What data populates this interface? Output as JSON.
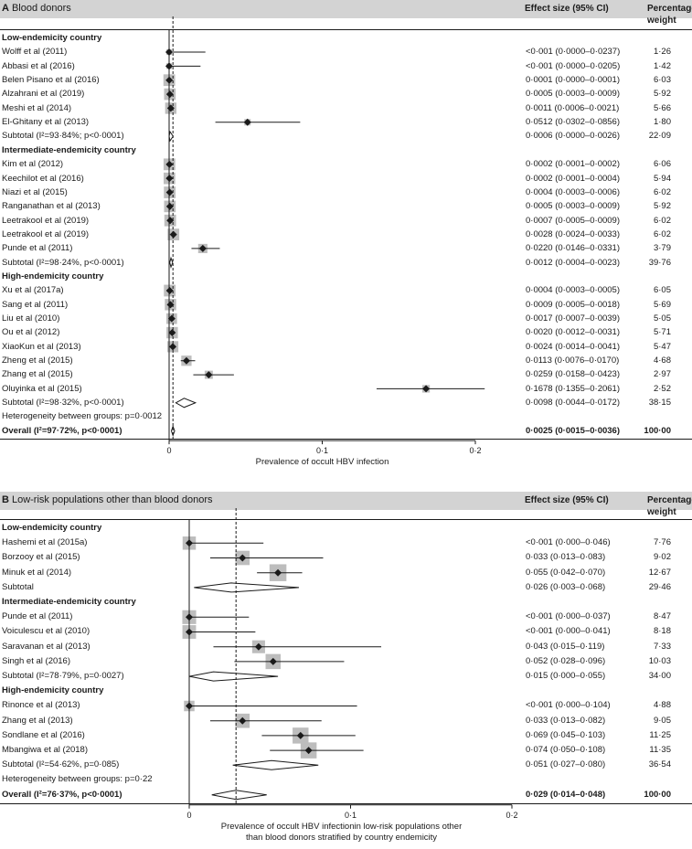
{
  "chart_data": [
    {
      "type": "forest",
      "panel_letter": "A",
      "title": "Blood donors",
      "effect_header": "Effect size (95% CI)",
      "weight_header_line1": "Percentage",
      "weight_header_line2": "weight",
      "xlabel": "Prevalence of occult HBV infection",
      "xlabel_line2": "",
      "xlim": [
        0,
        0.2
      ],
      "ticks": [
        0,
        0.1,
        0.2
      ],
      "tick_labels": [
        "0",
        "0·1",
        "0·2"
      ],
      "reference_line": 0.0025,
      "rows": [
        {
          "kind": "group",
          "label": "Low-endemicity country"
        },
        {
          "kind": "study",
          "label": "Wolff et al (2011)",
          "est": 0.0,
          "lo": 0.0,
          "hi": 0.0237,
          "ci_text": "<0·001 (0·0000–0·0237)",
          "weight_text": "1·26",
          "weight": 1.26
        },
        {
          "kind": "study",
          "label": "Abbasi et al (2016)",
          "est": 0.0,
          "lo": 0.0,
          "hi": 0.0205,
          "ci_text": "<0·001 (0·0000–0·0205)",
          "weight_text": "1·42",
          "weight": 1.42
        },
        {
          "kind": "study",
          "label": "Belen Pisano et al (2016)",
          "est": 0.0001,
          "lo": 0.0,
          "hi": 0.0001,
          "ci_text": "0·0001 (0·0000–0·0001)",
          "weight_text": "6·03",
          "weight": 6.03
        },
        {
          "kind": "study",
          "label": "Alzahrani et al (2019)",
          "est": 0.0005,
          "lo": 0.0003,
          "hi": 0.0009,
          "ci_text": "0·0005 (0·0003–0·0009)",
          "weight_text": "5·92",
          "weight": 5.92
        },
        {
          "kind": "study",
          "label": "Meshi et al (2014)",
          "est": 0.0011,
          "lo": 0.0006,
          "hi": 0.0021,
          "ci_text": "0·0011 (0·0006–0·0021)",
          "weight_text": "5·66",
          "weight": 5.66
        },
        {
          "kind": "study",
          "label": "El-Ghitany et al (2013)",
          "est": 0.0512,
          "lo": 0.0302,
          "hi": 0.0856,
          "ci_text": "0·0512 (0·0302–0·0856)",
          "weight_text": "1·80",
          "weight": 1.8
        },
        {
          "kind": "subtotal",
          "label": "Subtotal (I²=93·84%; p<0·0001)",
          "est": 0.0006,
          "lo": 0.0,
          "hi": 0.0026,
          "ci_text": "0·0006 (0·0000–0·0026)",
          "weight_text": "22·09"
        },
        {
          "kind": "group",
          "label": "Intermediate-endemicity country"
        },
        {
          "kind": "study",
          "label": "Kim et al (2012)",
          "est": 0.0002,
          "lo": 0.0001,
          "hi": 0.0002,
          "ci_text": "0·0002 (0·0001–0·0002)",
          "weight_text": "6·06",
          "weight": 6.06
        },
        {
          "kind": "study",
          "label": "Keechilot et al (2016)",
          "est": 0.0002,
          "lo": 0.0001,
          "hi": 0.0004,
          "ci_text": "0·0002 (0·0001–0·0004)",
          "weight_text": "5·94",
          "weight": 5.94
        },
        {
          "kind": "study",
          "label": "Niazi et al (2015)",
          "est": 0.0004,
          "lo": 0.0003,
          "hi": 0.0006,
          "ci_text": "0·0004 (0·0003–0·0006)",
          "weight_text": "6·02",
          "weight": 6.02
        },
        {
          "kind": "study",
          "label": "Ranganathan et al (2013)",
          "est": 0.0005,
          "lo": 0.0003,
          "hi": 0.0009,
          "ci_text": "0·0005 (0·0003–0·0009)",
          "weight_text": "5·92",
          "weight": 5.92
        },
        {
          "kind": "study",
          "label": "Leetrakool et al (2019)",
          "est": 0.0007,
          "lo": 0.0005,
          "hi": 0.0009,
          "ci_text": "0·0007 (0·0005–0·0009)",
          "weight_text": "6·02",
          "weight": 6.02
        },
        {
          "kind": "study",
          "label": "Leetrakool et al (2019)",
          "est": 0.0028,
          "lo": 0.0024,
          "hi": 0.0033,
          "ci_text": "0·0028 (0·0024–0·0033)",
          "weight_text": "6·02",
          "weight": 6.02
        },
        {
          "kind": "study",
          "label": "Punde et al (2011)",
          "est": 0.022,
          "lo": 0.0146,
          "hi": 0.0331,
          "ci_text": "0·0220 (0·0146–0·0331)",
          "weight_text": "3·79",
          "weight": 3.79
        },
        {
          "kind": "subtotal",
          "label": "Subtotal (I²=98·24%, p<0·0001)",
          "est": 0.0012,
          "lo": 0.0004,
          "hi": 0.0023,
          "ci_text": "0·0012 (0·0004–0·0023)",
          "weight_text": "39·76"
        },
        {
          "kind": "group",
          "label": "High-endemicity country"
        },
        {
          "kind": "study",
          "label": "Xu et al (2017a)",
          "est": 0.0004,
          "lo": 0.0003,
          "hi": 0.0005,
          "ci_text": "0·0004 (0·0003–0·0005)",
          "weight_text": "6·05",
          "weight": 6.05
        },
        {
          "kind": "study",
          "label": "Sang et al (2011)",
          "est": 0.0009,
          "lo": 0.0005,
          "hi": 0.0018,
          "ci_text": "0·0009 (0·0005–0·0018)",
          "weight_text": "5·69",
          "weight": 5.69
        },
        {
          "kind": "study",
          "label": "Liu et al (2010)",
          "est": 0.0017,
          "lo": 0.0007,
          "hi": 0.0039,
          "ci_text": "0·0017 (0·0007–0·0039)",
          "weight_text": "5·05",
          "weight": 5.05
        },
        {
          "kind": "study",
          "label": "Ou et al (2012)",
          "est": 0.002,
          "lo": 0.0012,
          "hi": 0.0031,
          "ci_text": "0·0020 (0·0012–0·0031)",
          "weight_text": "5·71",
          "weight": 5.71
        },
        {
          "kind": "study",
          "label": "XiaoKun et al (2013)",
          "est": 0.0024,
          "lo": 0.0014,
          "hi": 0.0041,
          "ci_text": "0·0024 (0·0014–0·0041)",
          "weight_text": "5·47",
          "weight": 5.47
        },
        {
          "kind": "study",
          "label": "Zheng et al (2015)",
          "est": 0.0113,
          "lo": 0.0076,
          "hi": 0.017,
          "ci_text": "0·0113 (0·0076–0·0170)",
          "weight_text": "4·68",
          "weight": 4.68
        },
        {
          "kind": "study",
          "label": "Zhang et al (2015)",
          "est": 0.0259,
          "lo": 0.0158,
          "hi": 0.0423,
          "ci_text": "0·0259 (0·0158–0·0423)",
          "weight_text": "2·97",
          "weight": 2.97
        },
        {
          "kind": "study",
          "label": "Oluyinka et al (2015)",
          "est": 0.1678,
          "lo": 0.1355,
          "hi": 0.2061,
          "ci_text": "0·1678 (0·1355–0·2061)",
          "weight_text": "2·52",
          "weight": 2.52
        },
        {
          "kind": "subtotal",
          "label": "Subtotal  (I²=98·32%, p<0·0001)",
          "est": 0.0098,
          "lo": 0.0044,
          "hi": 0.0172,
          "ci_text": "0·0098 (0·0044–0·0172)",
          "weight_text": "38·15"
        },
        {
          "kind": "note",
          "label": "Heterogeneity between groups: p=0·0012"
        },
        {
          "kind": "overall",
          "label": "Overall  (I²=97·72%, p<0·0001)",
          "est": 0.0025,
          "lo": 0.0015,
          "hi": 0.0036,
          "ci_text": "0·0025 (0·0015–0·0036)",
          "weight_text": "100·00"
        }
      ]
    },
    {
      "type": "forest",
      "panel_letter": "B",
      "title": "Low-risk populations other than blood donors",
      "effect_header": "Effect size (95% CI)",
      "weight_header_line1": "Percentage",
      "weight_header_line2": "weight",
      "xlabel": "Prevalence of occult HBV infectionin low-risk populations other",
      "xlabel_line2": "than blood donors stratified by country endemicity",
      "xlim": [
        0,
        0.2
      ],
      "ticks": [
        0,
        0.1,
        0.2
      ],
      "tick_labels": [
        "0",
        "0·1",
        "0·2"
      ],
      "reference_line": 0.029,
      "rows": [
        {
          "kind": "group",
          "label": "Low-endemicity country"
        },
        {
          "kind": "study",
          "label": "Hashemi et al (2015a)",
          "est": 0.0,
          "lo": 0.0,
          "hi": 0.046,
          "ci_text": "<0·001 (0·000–0·046)",
          "weight_text": "7·76",
          "weight": 7.76
        },
        {
          "kind": "study",
          "label": "Borzooy et al (2015)",
          "est": 0.033,
          "lo": 0.013,
          "hi": 0.083,
          "ci_text": "0·033 (0·013–0·083)",
          "weight_text": "9·02",
          "weight": 9.02
        },
        {
          "kind": "study",
          "label": "Minuk et al (2014)",
          "est": 0.055,
          "lo": 0.042,
          "hi": 0.07,
          "ci_text": "0·055 (0·042–0·070)",
          "weight_text": "12·67",
          "weight": 12.67
        },
        {
          "kind": "subtotal",
          "label": "Subtotal",
          "est": 0.026,
          "lo": 0.003,
          "hi": 0.068,
          "ci_text": "0·026 (0·003–0·068)",
          "weight_text": "29·46"
        },
        {
          "kind": "group",
          "label": "Intermediate-endemicity country"
        },
        {
          "kind": "study",
          "label": "Punde et al (2011)",
          "est": 0.0,
          "lo": 0.0,
          "hi": 0.037,
          "ci_text": "<0·001 (0·000–0·037)",
          "weight_text": "8·47",
          "weight": 8.47
        },
        {
          "kind": "study",
          "label": "Voiculescu et al (2010)",
          "est": 0.0,
          "lo": 0.0,
          "hi": 0.041,
          "ci_text": "<0·001 (0·000–0·041)",
          "weight_text": "8·18",
          "weight": 8.18
        },
        {
          "kind": "study",
          "label": "Saravanan et al (2013)",
          "est": 0.043,
          "lo": 0.015,
          "hi": 0.119,
          "ci_text": "0·043 (0·015–0·119)",
          "weight_text": "7·33",
          "weight": 7.33
        },
        {
          "kind": "study",
          "label": "Singh et al (2016)",
          "est": 0.052,
          "lo": 0.028,
          "hi": 0.096,
          "ci_text": "0·052 (0·028–0·096)",
          "weight_text": "10·03",
          "weight": 10.03
        },
        {
          "kind": "subtotal",
          "label": "Subtotal  (I²=78·79%, p=0·0027)",
          "est": 0.015,
          "lo": 0.0,
          "hi": 0.055,
          "ci_text": "0·015 (0·000–0·055)",
          "weight_text": "34·00"
        },
        {
          "kind": "group",
          "label": "High-endemicity country"
        },
        {
          "kind": "study",
          "label": "Rinonce et al (2013)",
          "est": 0.0,
          "lo": 0.0,
          "hi": 0.104,
          "ci_text": "<0·001 (0·000–0·104)",
          "weight_text": "4·88",
          "weight": 4.88
        },
        {
          "kind": "study",
          "label": "Zhang et al (2013)",
          "est": 0.033,
          "lo": 0.013,
          "hi": 0.082,
          "ci_text": "0·033 (0·013–0·082)",
          "weight_text": "9·05",
          "weight": 9.05
        },
        {
          "kind": "study",
          "label": "Sondlane et al (2016)",
          "est": 0.069,
          "lo": 0.045,
          "hi": 0.103,
          "ci_text": "0·069 (0·045–0·103)",
          "weight_text": "11·25",
          "weight": 11.25
        },
        {
          "kind": "study",
          "label": "Mbangiwa et al (2018)",
          "est": 0.074,
          "lo": 0.05,
          "hi": 0.108,
          "ci_text": "0·074 (0·050–0·108)",
          "weight_text": "11·35",
          "weight": 11.35
        },
        {
          "kind": "subtotal",
          "label": "Subtotal  (I²=54·62%, p=0·085)",
          "est": 0.051,
          "lo": 0.027,
          "hi": 0.08,
          "ci_text": "0·051 (0·027–0·080)",
          "weight_text": "36·54"
        },
        {
          "kind": "note",
          "label": "Heterogeneity between groups: p=0·22"
        },
        {
          "kind": "overall",
          "label": "Overall  (I²=76·37%, p<0·0001)",
          "est": 0.029,
          "lo": 0.014,
          "hi": 0.048,
          "ci_text": "0·029 (0·014–0·048)",
          "weight_text": "100·00"
        }
      ]
    }
  ],
  "colors": {
    "header_bar": "#d3d3d3",
    "weight_box": "#bdbdbd",
    "marker": "#1a1a1a",
    "lines": "#1a1a1a"
  }
}
